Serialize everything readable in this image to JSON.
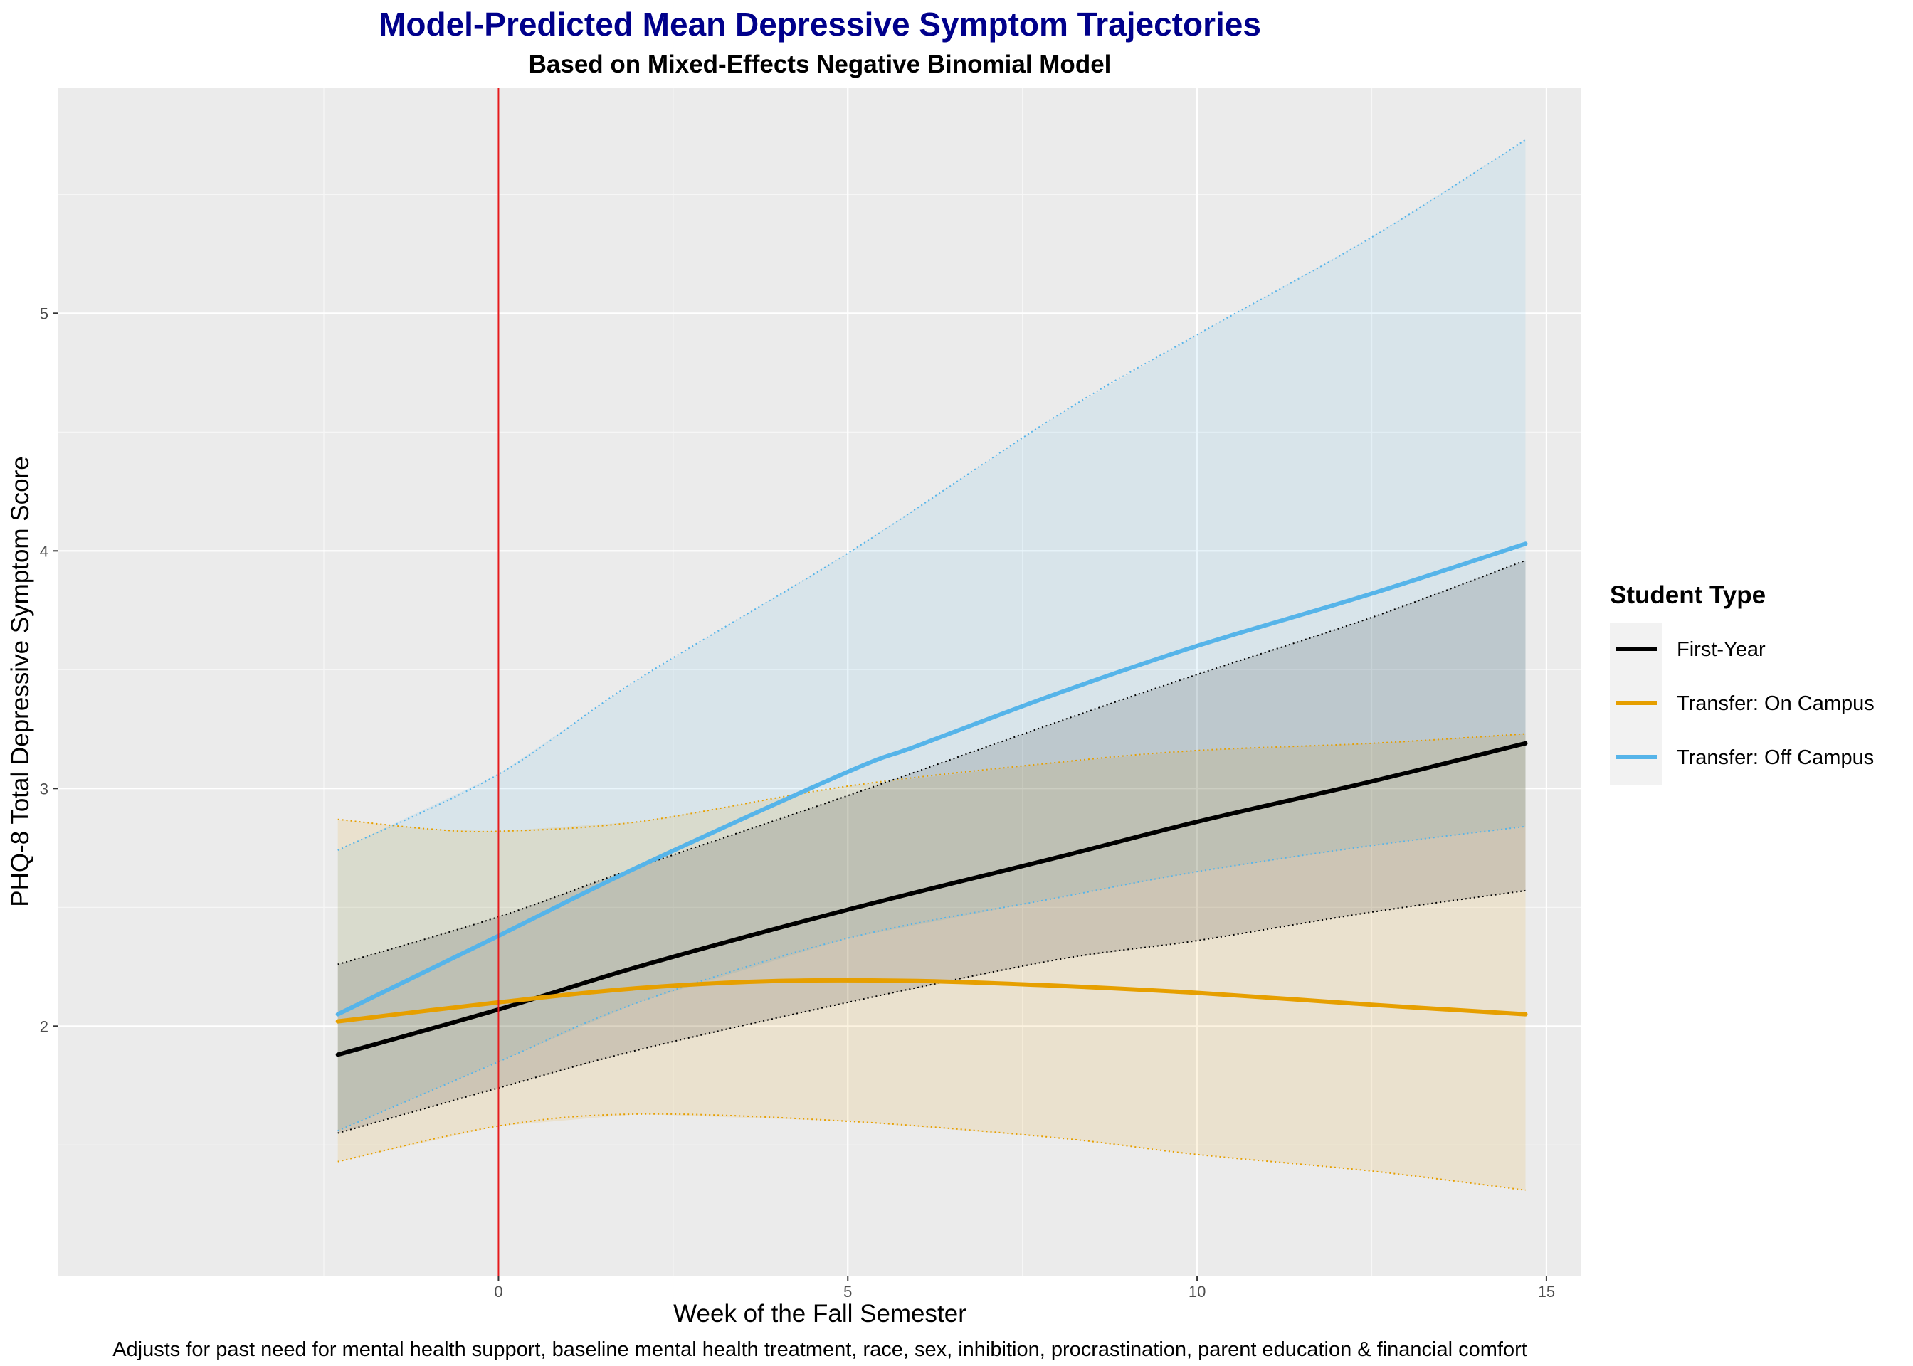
{
  "chart_data": {
    "type": "line",
    "title": "Model-Predicted Mean Depressive Symptom Trajectories",
    "subtitle": "Based on Mixed-Effects Negative Binomial Model",
    "xlabel": "Week of the Fall Semester",
    "ylabel": "PHQ-8 Total Depressive Symptom Score",
    "caption": "Adjusts for past need for mental health support, baseline mental health treatment, race, sex, inhibition, procrastination, parent education & financial comfort",
    "xlim": [
      -6.3,
      15.5
    ],
    "ylim": [
      0.95,
      5.95
    ],
    "x_ticks": [
      0,
      5,
      10,
      15
    ],
    "y_ticks": [
      2,
      3,
      4,
      5
    ],
    "reference_line_x": 0,
    "reference_line_color": "#E41A1C",
    "legend_title": "Student Type",
    "legend_position": "right",
    "grid": true,
    "series": [
      {
        "name": "First-Year",
        "color": "#000000",
        "points": [
          [
            -2.3,
            1.88
          ],
          [
            0,
            2.07
          ],
          [
            2,
            2.25
          ],
          [
            5,
            2.49
          ],
          [
            8,
            2.71
          ],
          [
            10,
            2.86
          ],
          [
            12.5,
            3.03
          ],
          [
            14.7,
            3.19
          ]
        ],
        "ci_lower": [
          [
            -2.3,
            1.55
          ],
          [
            0,
            1.74
          ],
          [
            2,
            1.9
          ],
          [
            5,
            2.1
          ],
          [
            8,
            2.28
          ],
          [
            10,
            2.36
          ],
          [
            12.5,
            2.48
          ],
          [
            14.7,
            2.57
          ]
        ],
        "ci_upper": [
          [
            -2.3,
            2.26
          ],
          [
            0,
            2.46
          ],
          [
            2,
            2.67
          ],
          [
            5,
            2.97
          ],
          [
            8,
            3.28
          ],
          [
            10,
            3.48
          ],
          [
            12.5,
            3.72
          ],
          [
            14.7,
            3.96
          ]
        ]
      },
      {
        "name": "Transfer: On Campus",
        "color": "#E69F00",
        "points": [
          [
            -2.3,
            2.02
          ],
          [
            0,
            2.1
          ],
          [
            2,
            2.16
          ],
          [
            4,
            2.19
          ],
          [
            6,
            2.19
          ],
          [
            8,
            2.17
          ],
          [
            10,
            2.14
          ],
          [
            12.5,
            2.09
          ],
          [
            14.7,
            2.05
          ]
        ],
        "ci_lower": [
          [
            -2.3,
            1.43
          ],
          [
            0,
            1.58
          ],
          [
            2,
            1.63
          ],
          [
            5,
            1.6
          ],
          [
            8,
            1.53
          ],
          [
            10,
            1.46
          ],
          [
            12.5,
            1.39
          ],
          [
            14.7,
            1.31
          ]
        ],
        "ci_upper": [
          [
            -2.3,
            2.87
          ],
          [
            -1,
            2.83
          ],
          [
            0,
            2.82
          ],
          [
            2,
            2.86
          ],
          [
            5,
            3.01
          ],
          [
            8,
            3.11
          ],
          [
            10,
            3.16
          ],
          [
            12.5,
            3.19
          ],
          [
            14.7,
            3.23
          ]
        ]
      },
      {
        "name": "Transfer: Off Campus",
        "color": "#56B4E9",
        "points": [
          [
            -2.3,
            2.05
          ],
          [
            0,
            2.38
          ],
          [
            2,
            2.67
          ],
          [
            5,
            3.07
          ],
          [
            6,
            3.18
          ],
          [
            8,
            3.4
          ],
          [
            10,
            3.6
          ],
          [
            12.5,
            3.82
          ],
          [
            14.7,
            4.03
          ]
        ],
        "ci_lower": [
          [
            -2.3,
            1.56
          ],
          [
            0,
            1.85
          ],
          [
            2,
            2.1
          ],
          [
            5,
            2.37
          ],
          [
            8,
            2.54
          ],
          [
            10,
            2.65
          ],
          [
            12.5,
            2.76
          ],
          [
            14.7,
            2.84
          ]
        ],
        "ci_upper": [
          [
            -2.3,
            2.74
          ],
          [
            0,
            3.06
          ],
          [
            2,
            3.46
          ],
          [
            5,
            3.99
          ],
          [
            8,
            4.57
          ],
          [
            10,
            4.91
          ],
          [
            12.5,
            5.32
          ],
          [
            14.7,
            5.73
          ]
        ]
      }
    ]
  }
}
